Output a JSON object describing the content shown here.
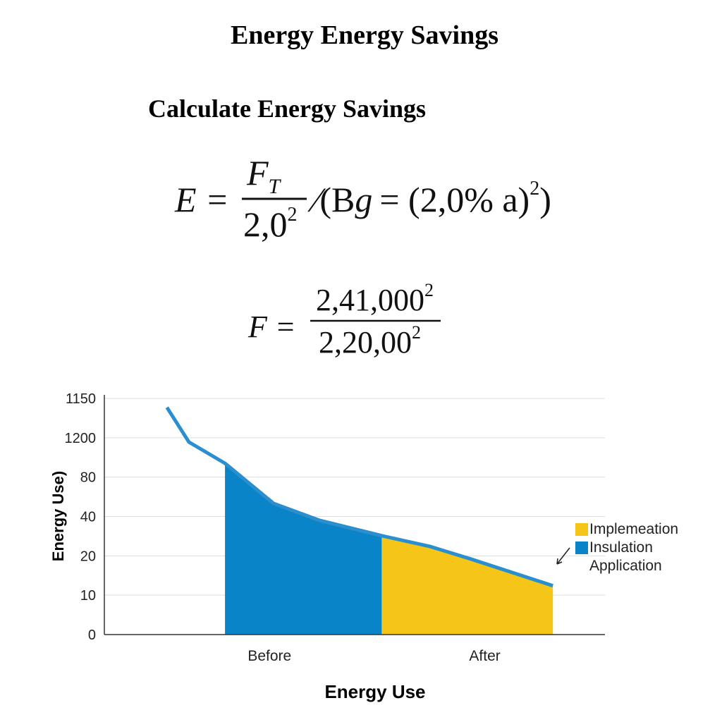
{
  "header": {
    "title": "Energy Energy Savings",
    "subtitle": "Calculate Energy Savings"
  },
  "formulas": [
    {
      "lhs": "E =",
      "num": "F",
      "num_sub": "T",
      "den": "2,0",
      "den_sup": "2",
      "rest": "⁄(B",
      "rest_sub": "g",
      "rest2": "= (2,0% a)",
      "rest_sup": "2",
      "rest_end": ")"
    },
    {
      "lhs": "F =",
      "num": "2,41,000",
      "num_sup": "2",
      "den": "2,20,00",
      "den_sup": "2"
    }
  ],
  "chart_data": {
    "type": "area",
    "y_label": "Energy Use)",
    "x_label": "Energy Use",
    "xlim": [
      0,
      10
    ],
    "xticks": [
      {
        "value": 3.3,
        "label": "Before"
      },
      {
        "value": 7.6,
        "label": "After"
      }
    ],
    "ylim": [
      0,
      6
    ],
    "yticks": [
      {
        "value": 0,
        "label": "0"
      },
      {
        "value": 1,
        "label": "10"
      },
      {
        "value": 2,
        "label": "20"
      },
      {
        "value": 3,
        "label": "40"
      },
      {
        "value": 4,
        "label": "80"
      },
      {
        "value": 5,
        "label": "1200"
      },
      {
        "value": 6,
        "label": "1150"
      }
    ],
    "grid": true,
    "legend": "right",
    "line": {
      "color": "#2a8fd0",
      "x": [
        1.25,
        1.69,
        2.41,
        3.38,
        4.3,
        5.54,
        6.5,
        7.32,
        8.96
      ],
      "values": [
        5.77,
        4.89,
        4.35,
        3.33,
        2.9,
        2.51,
        2.24,
        1.92,
        1.24
      ]
    },
    "series": [
      {
        "name": "Implemeation",
        "color": "#f5c518",
        "x": [
          5.54,
          6.5,
          7.32,
          8.96
        ],
        "values": [
          2.51,
          2.24,
          1.92,
          1.24
        ]
      },
      {
        "name": "Insulation Application",
        "color": "#0a84c8",
        "edge": "#5b7a3c",
        "x": [
          2.41,
          3.38,
          4.3,
          5.54
        ],
        "values": [
          4.35,
          3.33,
          2.9,
          2.51
        ]
      }
    ]
  }
}
